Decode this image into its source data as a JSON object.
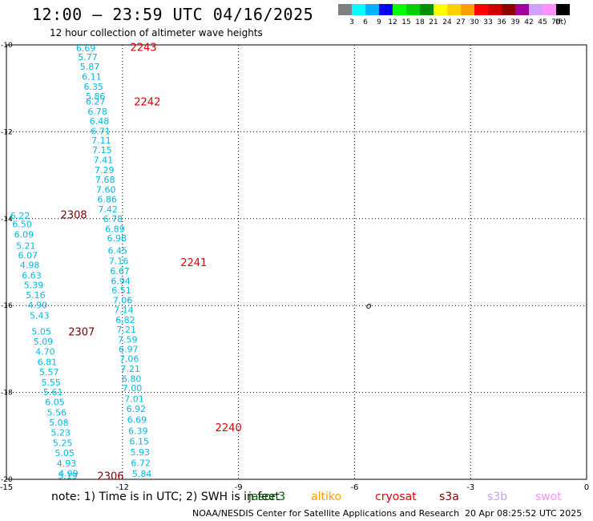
{
  "header": {
    "title": "12:00 — 23:59 UTC 04/16/2025",
    "subtitle": "12 hour collection of altimeter wave heights"
  },
  "colorbar": {
    "unit": "(ft)",
    "bins": [
      {
        "label": "3",
        "color": "#808080"
      },
      {
        "label": "6",
        "color": "#00ffff"
      },
      {
        "label": "9",
        "color": "#00b0ff"
      },
      {
        "label": "12",
        "color": "#0000ff"
      },
      {
        "label": "15",
        "color": "#00ff00"
      },
      {
        "label": "18",
        "color": "#00d000"
      },
      {
        "label": "21",
        "color": "#009000"
      },
      {
        "label": "24",
        "color": "#ffff00"
      },
      {
        "label": "27",
        "color": "#ffd000"
      },
      {
        "label": "30",
        "color": "#ffa000"
      },
      {
        "label": "33",
        "color": "#ff0000"
      },
      {
        "label": "36",
        "color": "#d00000"
      },
      {
        "label": "39",
        "color": "#900000"
      },
      {
        "label": "42",
        "color": "#a000a0"
      },
      {
        "label": "45",
        "color": "#d0a0ff"
      },
      {
        "label": "70",
        "color": "#ff90ff"
      },
      {
        "label": "",
        "color": "#000000"
      }
    ]
  },
  "axes": {
    "lon_ticks": [
      "-15",
      "-12",
      "-9",
      "-6",
      "-3",
      "0"
    ],
    "lat_ticks": [
      "-10",
      "-12",
      "-14",
      "-16",
      "-18",
      "-20"
    ]
  },
  "map_extent": {
    "lon": [
      -15,
      0
    ],
    "lat": [
      -20,
      -10
    ]
  },
  "land_label": {
    "text": "o",
    "lon": -5.7,
    "lat": -16.0
  },
  "tracks": [
    {
      "id": "2243",
      "time_color": "#e00000",
      "value_color": "#00b8e8",
      "label_lon": -11.8,
      "label_lat": -10.05,
      "points": [
        {
          "v": "6.69",
          "lon": -13.2,
          "lat": -10.07
        },
        {
          "v": "5.77",
          "lon": -13.15,
          "lat": -10.28
        },
        {
          "v": "5.87",
          "lon": -13.1,
          "lat": -10.5
        },
        {
          "v": "6.11",
          "lon": -13.05,
          "lat": -10.73
        },
        {
          "v": "6.35",
          "lon": -13.0,
          "lat": -10.96
        },
        {
          "v": "5.86",
          "lon": -12.95,
          "lat": -11.18
        }
      ]
    },
    {
      "id": "2242",
      "time_color": "#e00000",
      "value_color": "#00b8e8",
      "label_lon": -11.7,
      "label_lat": -11.3,
      "points": [
        {
          "v": "6.27",
          "lon": -12.95,
          "lat": -11.3
        },
        {
          "v": "6.78",
          "lon": -12.9,
          "lat": -11.53
        },
        {
          "v": "6.48",
          "lon": -12.85,
          "lat": -11.75
        },
        {
          "v": "6.71",
          "lon": -12.82,
          "lat": -11.98
        },
        {
          "v": "7.11",
          "lon": -12.8,
          "lat": -12.2
        },
        {
          "v": "7.15",
          "lon": -12.78,
          "lat": -12.42
        },
        {
          "v": "7.41",
          "lon": -12.75,
          "lat": -12.65
        },
        {
          "v": "7.29",
          "lon": -12.72,
          "lat": -12.88
        },
        {
          "v": "7.68",
          "lon": -12.7,
          "lat": -13.1
        },
        {
          "v": "7.60",
          "lon": -12.68,
          "lat": -13.33
        },
        {
          "v": "6.86",
          "lon": -12.65,
          "lat": -13.55
        },
        {
          "v": "7.42",
          "lon": -12.63,
          "lat": -13.78
        }
      ]
    },
    {
      "id": "2241",
      "time_color": "#e00000",
      "value_color": "#00b8e8",
      "label_lon": -10.5,
      "label_lat": -15.0,
      "points": [
        {
          "v": "6.78",
          "lon": -12.5,
          "lat": -14.0
        },
        {
          "v": "6.89",
          "lon": -12.45,
          "lat": -14.23
        },
        {
          "v": "6.98",
          "lon": -12.4,
          "lat": -14.45
        },
        {
          "v": "6.45",
          "lon": -12.38,
          "lat": -14.73
        },
        {
          "v": "7.16",
          "lon": -12.35,
          "lat": -14.97
        },
        {
          "v": "6.67",
          "lon": -12.32,
          "lat": -15.2
        },
        {
          "v": "6.94",
          "lon": -12.3,
          "lat": -15.43
        },
        {
          "v": "6.51",
          "lon": -12.28,
          "lat": -15.65
        },
        {
          "v": "7.06",
          "lon": -12.25,
          "lat": -15.88
        },
        {
          "v": "7.14",
          "lon": -12.22,
          "lat": -16.1
        },
        {
          "v": "6.82",
          "lon": -12.18,
          "lat": -16.33
        },
        {
          "v": "7.21",
          "lon": -12.15,
          "lat": -16.55
        },
        {
          "v": "7.59",
          "lon": -12.12,
          "lat": -16.78
        },
        {
          "v": "6.97",
          "lon": -12.1,
          "lat": -17.0
        },
        {
          "v": "7.06",
          "lon": -12.08,
          "lat": -17.22
        },
        {
          "v": "7.21",
          "lon": -12.05,
          "lat": -17.45
        },
        {
          "v": "6.80",
          "lon": -12.02,
          "lat": -17.68
        },
        {
          "v": "7.00",
          "lon": -12.0,
          "lat": -17.9
        }
      ]
    },
    {
      "id": "2240",
      "time_color": "#e00000",
      "value_color": "#00b8e8",
      "label_lon": -9.6,
      "label_lat": -18.8,
      "points": [
        {
          "v": "7.01",
          "lon": -11.95,
          "lat": -18.15
        },
        {
          "v": "6.92",
          "lon": -11.9,
          "lat": -18.38
        },
        {
          "v": "6.69",
          "lon": -11.88,
          "lat": -18.63
        },
        {
          "v": "6.39",
          "lon": -11.85,
          "lat": -18.88
        },
        {
          "v": "6.15",
          "lon": -11.82,
          "lat": -19.12
        },
        {
          "v": "5.93",
          "lon": -11.8,
          "lat": -19.37
        },
        {
          "v": "6.72",
          "lon": -11.78,
          "lat": -19.62
        },
        {
          "v": "5.84",
          "lon": -11.75,
          "lat": -19.87
        }
      ]
    },
    {
      "id": "2308",
      "time_color": "#800000",
      "value_color": "#00b8e8",
      "label_lon": -13.6,
      "label_lat": -13.9,
      "points": [
        {
          "v": "6.22",
          "lon": -14.9,
          "lat": -13.93
        },
        {
          "v": "6.50",
          "lon": -14.85,
          "lat": -14.12
        },
        {
          "v": "6.09",
          "lon": -14.8,
          "lat": -14.36
        },
        {
          "v": "5.21",
          "lon": -14.75,
          "lat": -14.62
        },
        {
          "v": "6.07",
          "lon": -14.7,
          "lat": -14.84
        },
        {
          "v": "4.98",
          "lon": -14.65,
          "lat": -15.06
        },
        {
          "v": "6.63",
          "lon": -14.6,
          "lat": -15.3
        },
        {
          "v": "5.39",
          "lon": -14.55,
          "lat": -15.53
        },
        {
          "v": "5.16",
          "lon": -14.5,
          "lat": -15.76
        },
        {
          "v": "4.90",
          "lon": -14.45,
          "lat": -15.99
        },
        {
          "v": "5.43",
          "lon": -14.4,
          "lat": -16.23
        }
      ]
    },
    {
      "id": "2307",
      "time_color": "#800000",
      "value_color": "#00b8e8",
      "label_lon": -13.4,
      "label_lat": -16.6,
      "points": [
        {
          "v": "5.05",
          "lon": -14.35,
          "lat": -16.6
        },
        {
          "v": "5.09",
          "lon": -14.3,
          "lat": -16.83
        },
        {
          "v": "4.70",
          "lon": -14.25,
          "lat": -17.06
        },
        {
          "v": "6.81",
          "lon": -14.2,
          "lat": -17.3
        },
        {
          "v": "5.57",
          "lon": -14.15,
          "lat": -17.53
        },
        {
          "v": "5.55",
          "lon": -14.1,
          "lat": -17.77
        },
        {
          "v": "5.61",
          "lon": -14.05,
          "lat": -17.99
        },
        {
          "v": "6.05",
          "lon": -14.0,
          "lat": -18.22
        },
        {
          "v": "5.56",
          "lon": -13.95,
          "lat": -18.46
        },
        {
          "v": "5.08",
          "lon": -13.9,
          "lat": -18.69
        },
        {
          "v": "5.23",
          "lon": -13.85,
          "lat": -18.92
        },
        {
          "v": "5.25",
          "lon": -13.8,
          "lat": -19.16
        },
        {
          "v": "5.05",
          "lon": -13.75,
          "lat": -19.39
        },
        {
          "v": "4.93",
          "lon": -13.7,
          "lat": -19.63
        }
      ]
    },
    {
      "id": "2306",
      "time_color": "#800000",
      "value_color": "#00b8e8",
      "label_lon": -12.65,
      "label_lat": -19.92,
      "points": [
        {
          "v": "4.99",
          "lon": -13.65,
          "lat": -19.86
        },
        {
          "v": "5.19",
          "lon": -13.67,
          "lat": -19.92
        }
      ]
    }
  ],
  "footer": {
    "note": "note:  1) Time is in UTC;  2) SWH is in feet",
    "satellites": [
      {
        "name": "jason3",
        "color": "#006400"
      },
      {
        "name": "altiko",
        "color": "#ffa000"
      },
      {
        "name": "cryosat",
        "color": "#e00000"
      },
      {
        "name": "s3a",
        "color": "#800000"
      },
      {
        "name": "s3b",
        "color": "#c0a0ff"
      },
      {
        "name": "swot",
        "color": "#ff90ff"
      }
    ],
    "credit": "NOAA/NESDIS Center for Satellite Applications and Research",
    "timestamp": "20 Apr 08:25:52 UTC 2025"
  }
}
